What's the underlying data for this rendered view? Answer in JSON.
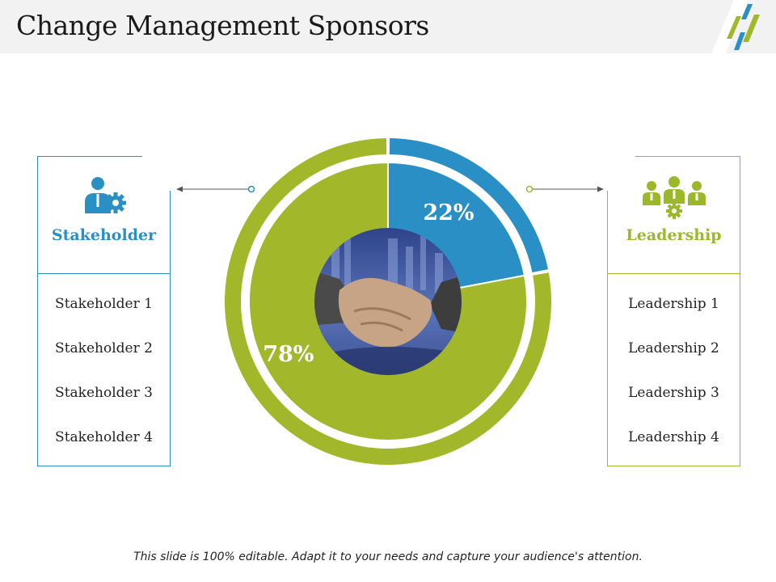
{
  "slide": {
    "title": "Change Management Sponsors",
    "footer": "This slide is 100% editable. Adapt it to your needs and capture your audience's attention."
  },
  "left_panel": {
    "heading": "Stakeholder",
    "icon": "person-gear-icon",
    "items": [
      "Stakeholder 1",
      "Stakeholder 2",
      "Stakeholder 3",
      "Stakeholder 4"
    ]
  },
  "right_panel": {
    "heading": "Leadership",
    "icon": "team-gear-icon",
    "items": [
      "Leadership 1",
      "Leadership 2",
      "Leadership 3",
      "Leadership 4"
    ]
  },
  "colors": {
    "blue": "#2a8fc5",
    "green": "#a2b82a"
  },
  "chart_data": {
    "type": "pie",
    "categories": [
      "Stakeholder",
      "Leadership"
    ],
    "values": [
      22,
      78
    ],
    "labels": [
      "22%",
      "78%"
    ],
    "colors": [
      "#2a8fc5",
      "#a2b82a"
    ],
    "center_image": "handshake-photo"
  }
}
